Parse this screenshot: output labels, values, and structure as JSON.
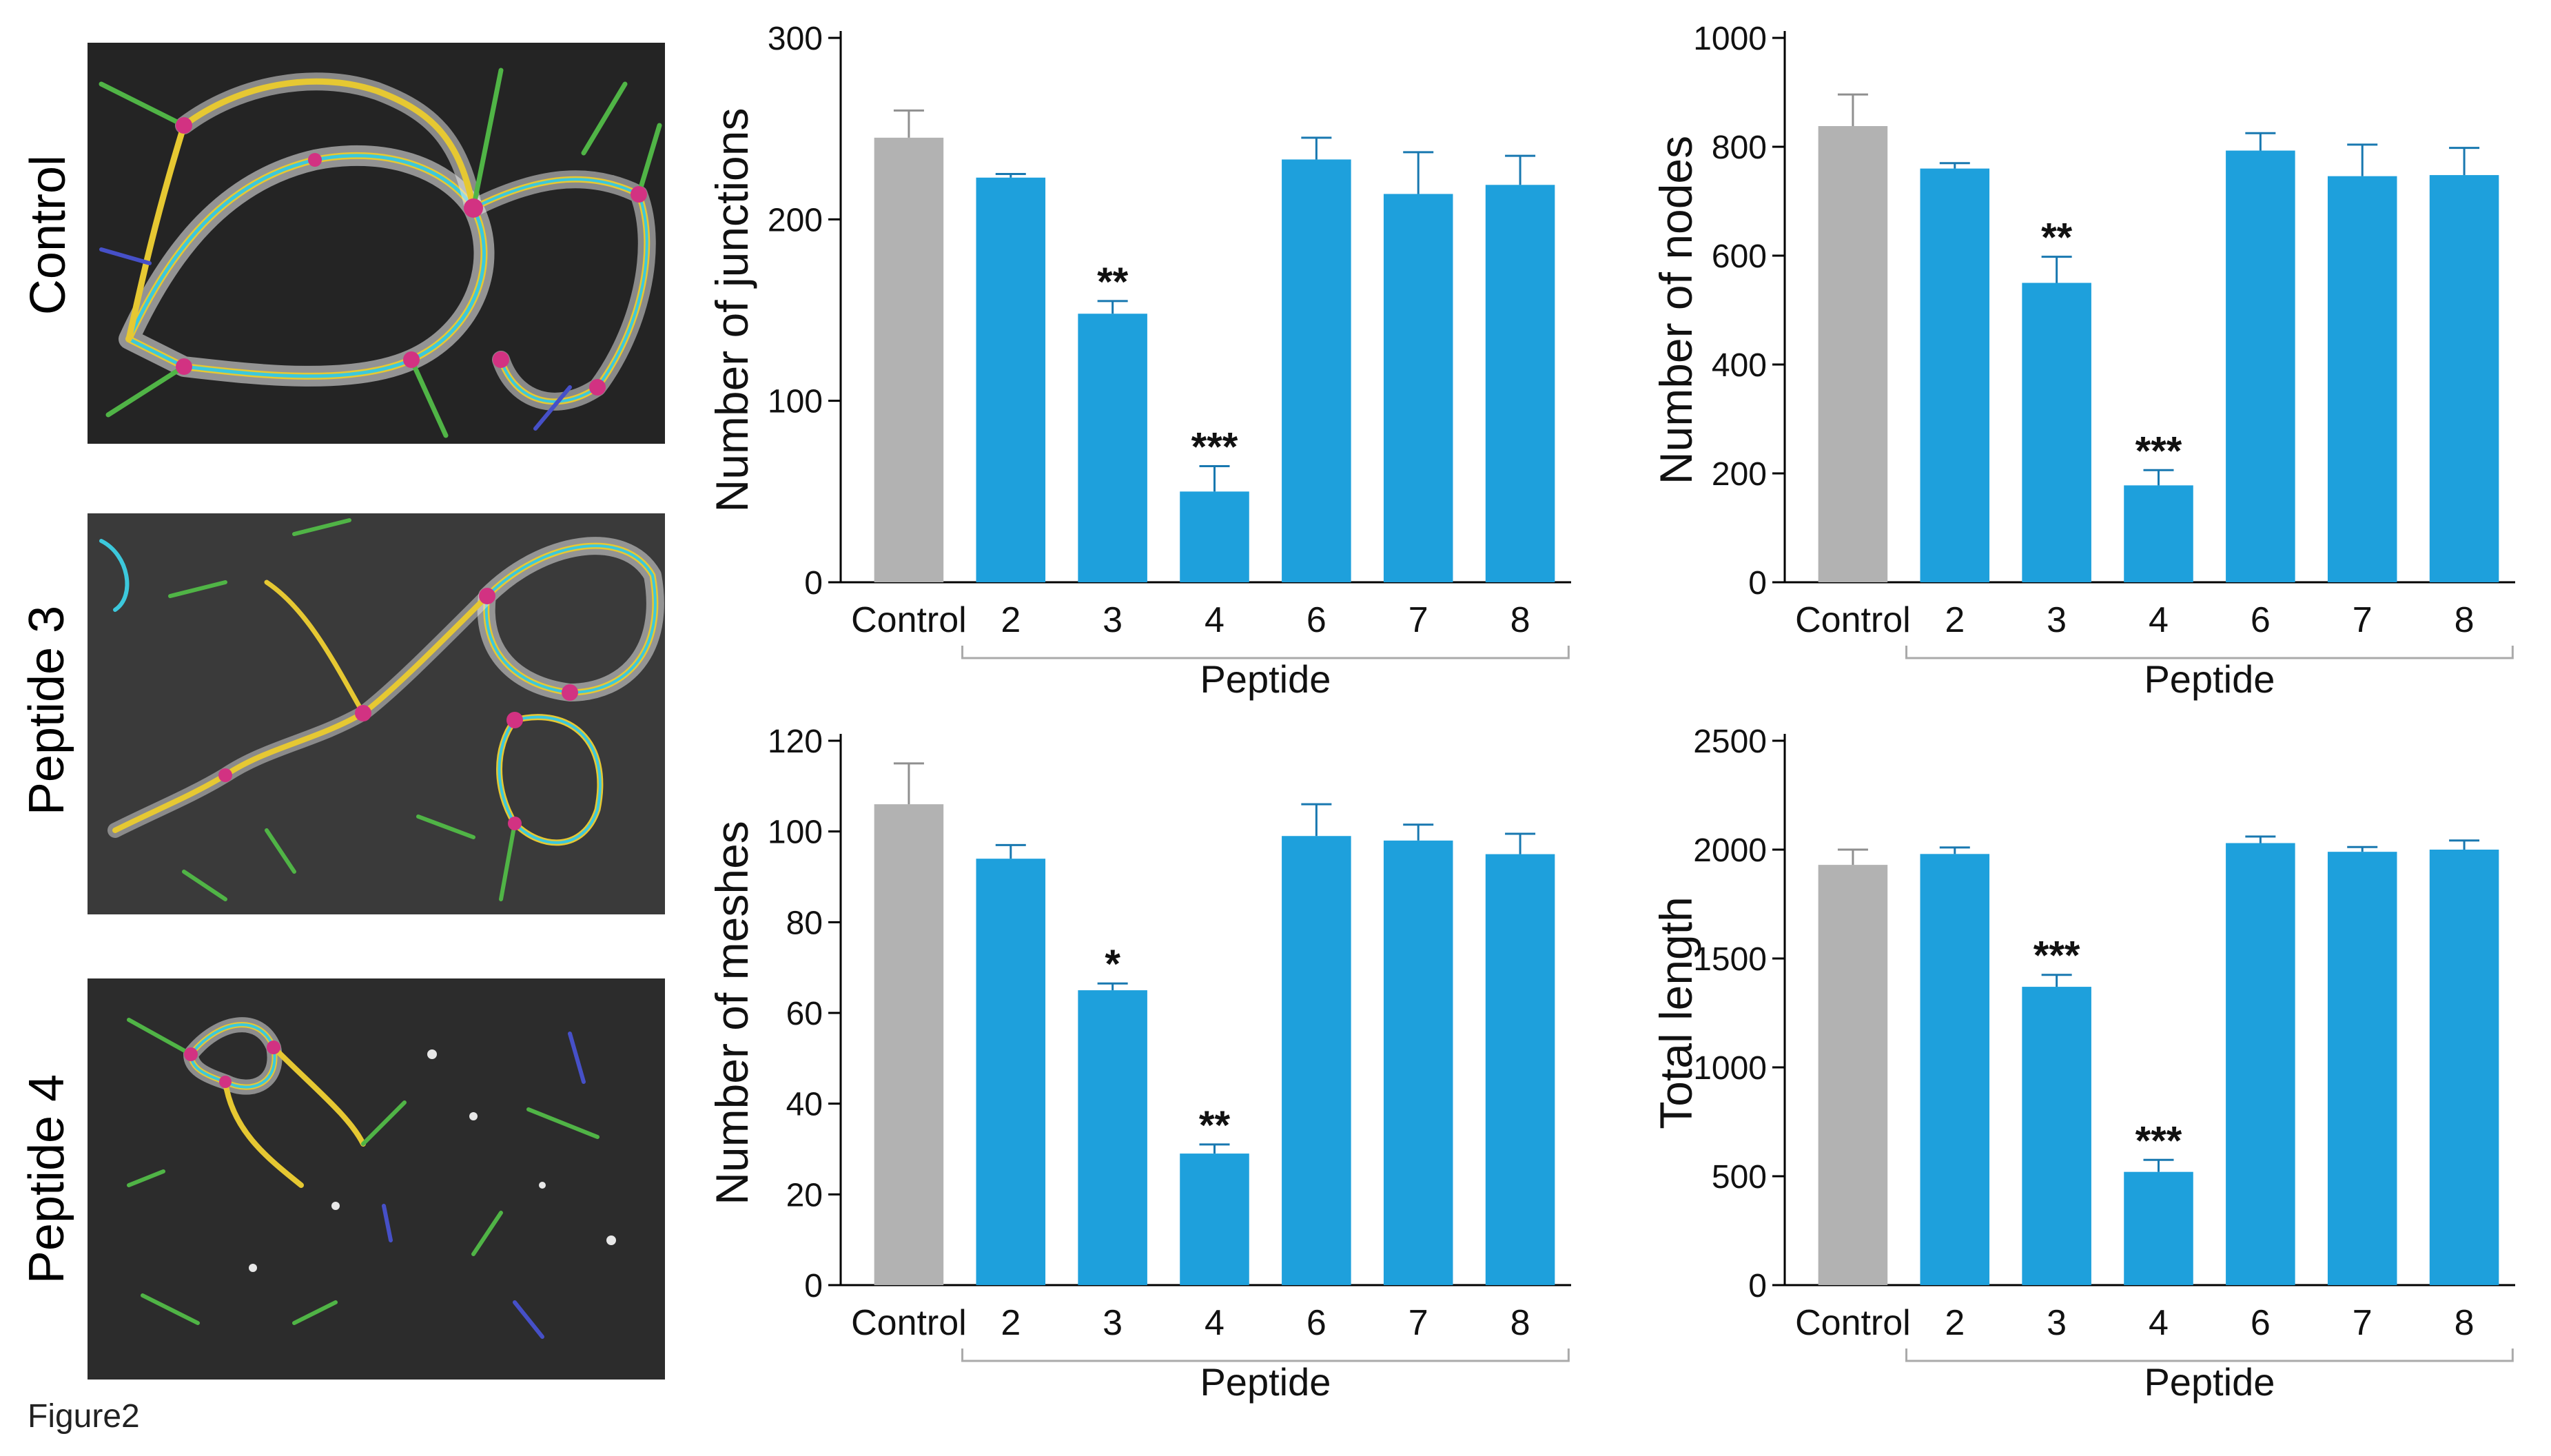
{
  "caption": "Figure2",
  "image_labels": [
    "Control",
    "Peptide 3",
    "Peptide 4"
  ],
  "colors": {
    "control": "#b2b2b2",
    "peptide": "#1ea0dc",
    "axis": "#000000",
    "bracket": "#aaaaaa"
  },
  "chart_data": [
    {
      "type": "bar",
      "ylabel": "Number of junctions",
      "xlabel": "Peptide",
      "categories": [
        "Control",
        "2",
        "3",
        "4",
        "6",
        "7",
        "8"
      ],
      "values": [
        245,
        223,
        148,
        50,
        233,
        214,
        219
      ],
      "errors": [
        15,
        2,
        7,
        14,
        12,
        23,
        16
      ],
      "significance": [
        "",
        "",
        "**",
        "***",
        "",
        "",
        ""
      ],
      "yticks": [
        0,
        100,
        200,
        300
      ],
      "ylim": [
        0,
        300
      ]
    },
    {
      "type": "bar",
      "ylabel": "Number of nodes",
      "xlabel": "Peptide",
      "categories": [
        "Control",
        "2",
        "3",
        "4",
        "6",
        "7",
        "8"
      ],
      "values": [
        838,
        760,
        550,
        178,
        793,
        746,
        748
      ],
      "errors": [
        58,
        10,
        48,
        28,
        32,
        58,
        50
      ],
      "significance": [
        "",
        "",
        "**",
        "***",
        "",
        "",
        ""
      ],
      "yticks": [
        0,
        200,
        400,
        600,
        800,
        1000
      ],
      "ylim": [
        0,
        1000
      ]
    },
    {
      "type": "bar",
      "ylabel": "Number of meshes",
      "xlabel": "Peptide",
      "categories": [
        "Control",
        "2",
        "3",
        "4",
        "6",
        "7",
        "8"
      ],
      "values": [
        106,
        94,
        65,
        29,
        99,
        98,
        95
      ],
      "errors": [
        9,
        3,
        1.5,
        2,
        7,
        3.5,
        4.5
      ],
      "significance": [
        "",
        "",
        "*",
        "**",
        "",
        "",
        ""
      ],
      "yticks": [
        0,
        20,
        40,
        60,
        80,
        100,
        120
      ],
      "ylim": [
        0,
        120
      ]
    },
    {
      "type": "bar",
      "ylabel": "Total length",
      "xlabel": "Peptide",
      "categories": [
        "Control",
        "2",
        "3",
        "4",
        "6",
        "7",
        "8"
      ],
      "values": [
        1930,
        1980,
        1370,
        520,
        2030,
        1990,
        2000
      ],
      "errors": [
        70,
        30,
        55,
        55,
        30,
        22,
        42
      ],
      "significance": [
        "",
        "",
        "***",
        "***",
        "",
        "",
        ""
      ],
      "yticks": [
        0,
        500,
        1000,
        1500,
        2000,
        2500
      ],
      "ylim": [
        0,
        2500
      ]
    }
  ]
}
